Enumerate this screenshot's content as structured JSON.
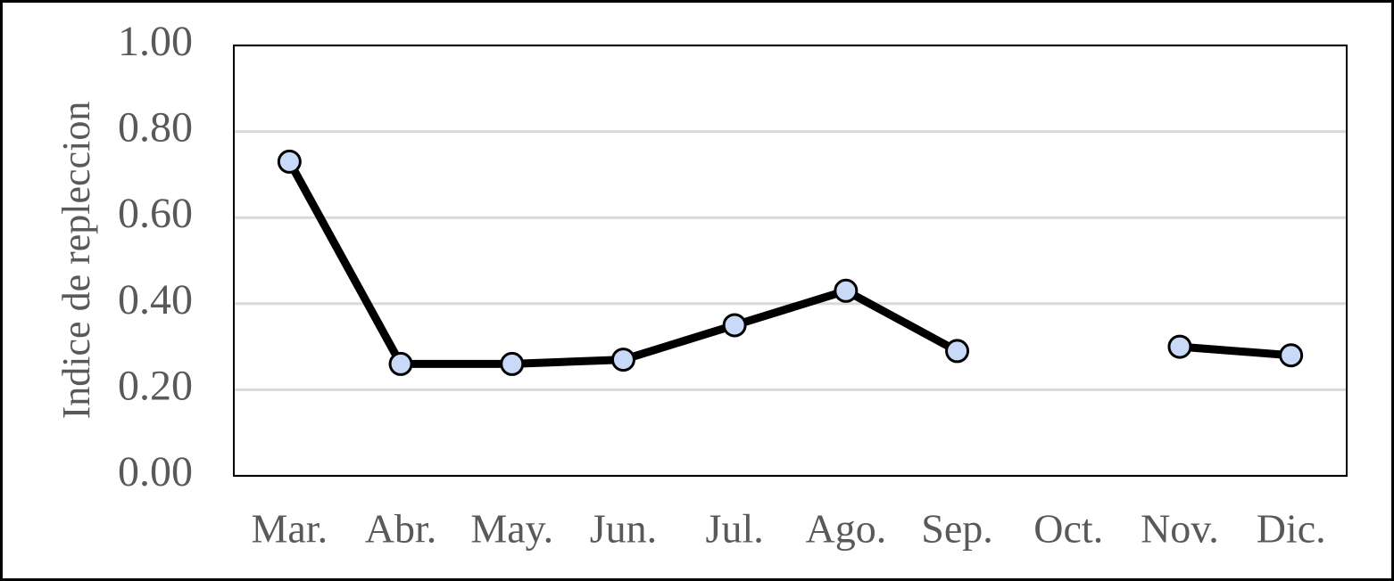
{
  "chart_data": {
    "type": "line",
    "y_label": "Indice de repleccion",
    "categories": [
      "Mar.",
      "Abr.",
      "May.",
      "Jun.",
      "Jul.",
      "Ago.",
      "Sep.",
      "Oct.",
      "Nov.",
      "Dic."
    ],
    "values": [
      0.73,
      0.26,
      0.26,
      0.27,
      0.35,
      0.43,
      0.29,
      null,
      0.3,
      0.28
    ],
    "color": "#000000",
    "marker_color": "#c9daf8",
    "ylim": [
      0,
      1
    ],
    "yticks": [
      {
        "value": 0,
        "label": "0.00"
      },
      {
        "value": 0.2,
        "label": "0.20"
      },
      {
        "value": 0.4,
        "label": "0.40"
      },
      {
        "value": 0.6,
        "label": "0.60"
      },
      {
        "value": 0.8,
        "label": "0.80"
      },
      {
        "value": 1,
        "label": "1.00"
      }
    ],
    "grid": true
  }
}
